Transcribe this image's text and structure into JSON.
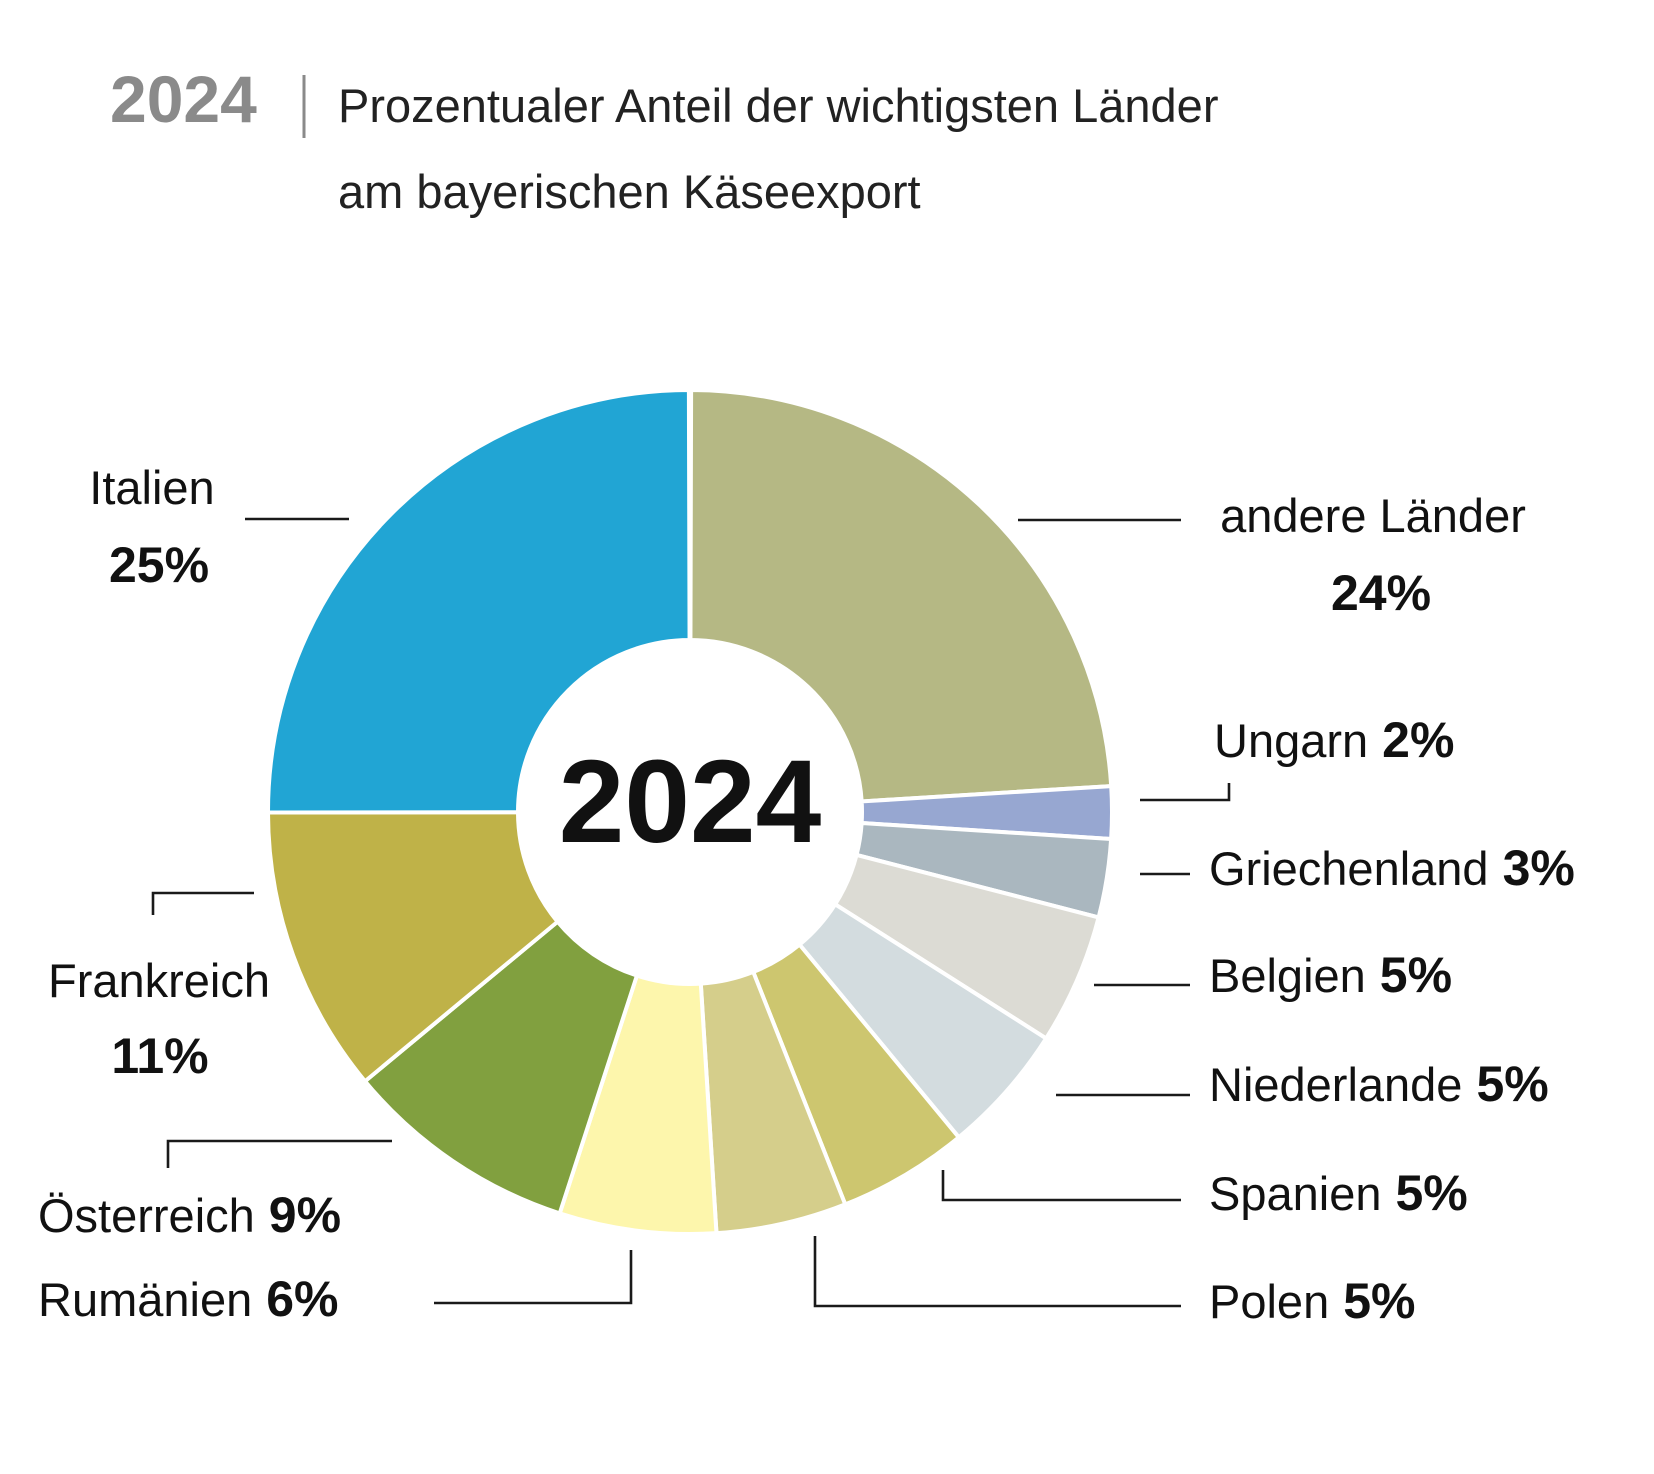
{
  "header": {
    "year": "2024",
    "title_line1": "Prozentualer Anteil der wichtigsten Länder",
    "title_line2": "am bayerischen Käseexport"
  },
  "chart_data": {
    "type": "pie",
    "donut": true,
    "center_label": "2024",
    "title": "Prozentualer Anteil der wichtigsten Länder am bayerischen Käseexport",
    "unit": "%",
    "slices": [
      {
        "label": "andere Länder",
        "value": 24,
        "value_label": "24%",
        "color": "#b5b884"
      },
      {
        "label": "Ungarn",
        "value": 2,
        "value_label": "2%",
        "color": "#97a7d1"
      },
      {
        "label": "Griechenland",
        "value": 3,
        "value_label": "3%",
        "color": "#aab7bf"
      },
      {
        "label": "Belgien",
        "value": 5,
        "value_label": "5%",
        "color": "#dcdbd4"
      },
      {
        "label": "Niederlande",
        "value": 5,
        "value_label": "5%",
        "color": "#d3dcdf"
      },
      {
        "label": "Spanien",
        "value": 5,
        "value_label": "5%",
        "color": "#cdc66f"
      },
      {
        "label": "Polen",
        "value": 5,
        "value_label": "5%",
        "color": "#d5ce8b"
      },
      {
        "label": "Rumänien",
        "value": 6,
        "value_label": "6%",
        "color": "#fdf6ac"
      },
      {
        "label": "Österreich",
        "value": 9,
        "value_label": "9%",
        "color": "#81a03f"
      },
      {
        "label": "Frankreich",
        "value": 11,
        "value_label": "11%",
        "color": "#bfb248"
      },
      {
        "label": "Italien",
        "value": 25,
        "value_label": "25%",
        "color": "#21a5d4"
      }
    ]
  }
}
